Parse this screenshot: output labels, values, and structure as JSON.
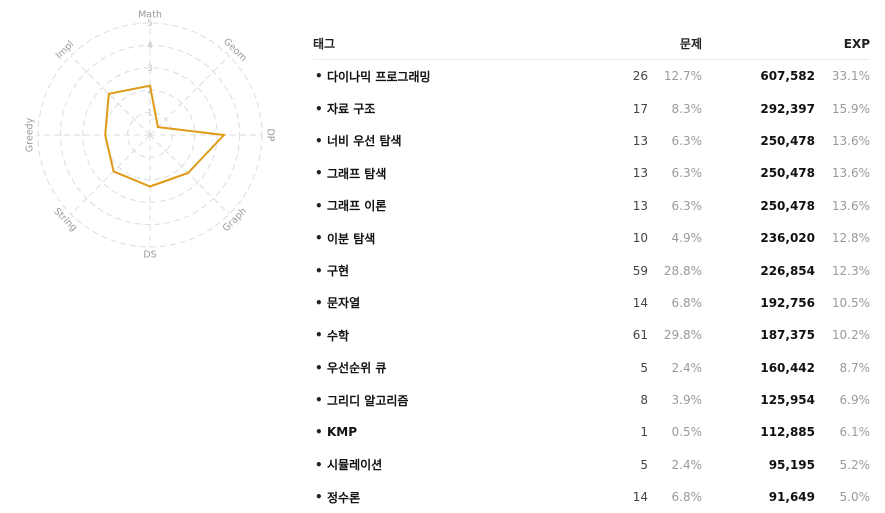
{
  "radar": {
    "axes": [
      {
        "label": "Math",
        "value": 2.2
      },
      {
        "label": "Geom",
        "value": 0.5
      },
      {
        "label": "DP",
        "value": 3.3
      },
      {
        "label": "Graph",
        "value": 2.4
      },
      {
        "label": "DS",
        "value": 2.3
      },
      {
        "label": "String",
        "value": 2.3
      },
      {
        "label": "Greedy",
        "value": 2.0
      },
      {
        "label": "Impl",
        "value": 2.6
      }
    ],
    "rings": [
      "1",
      "2",
      "3",
      "4",
      "5"
    ],
    "max": 5,
    "line_color": "#e09a16",
    "grid_color": "#dcdcdc"
  },
  "table": {
    "headers": {
      "tag": "태그",
      "problems": "문제",
      "exp": "EXP"
    },
    "rows": [
      {
        "tag": "다이나믹 프로그래밍",
        "count": "26",
        "count_pct": "12.7%",
        "exp": "607,582",
        "exp_pct": "33.1%"
      },
      {
        "tag": "자료 구조",
        "count": "17",
        "count_pct": "8.3%",
        "exp": "292,397",
        "exp_pct": "15.9%"
      },
      {
        "tag": "너비 우선 탐색",
        "count": "13",
        "count_pct": "6.3%",
        "exp": "250,478",
        "exp_pct": "13.6%"
      },
      {
        "tag": "그래프 탐색",
        "count": "13",
        "count_pct": "6.3%",
        "exp": "250,478",
        "exp_pct": "13.6%"
      },
      {
        "tag": "그래프 이론",
        "count": "13",
        "count_pct": "6.3%",
        "exp": "250,478",
        "exp_pct": "13.6%"
      },
      {
        "tag": "이분 탐색",
        "count": "10",
        "count_pct": "4.9%",
        "exp": "236,020",
        "exp_pct": "12.8%"
      },
      {
        "tag": "구현",
        "count": "59",
        "count_pct": "28.8%",
        "exp": "226,854",
        "exp_pct": "12.3%"
      },
      {
        "tag": "문자열",
        "count": "14",
        "count_pct": "6.8%",
        "exp": "192,756",
        "exp_pct": "10.5%"
      },
      {
        "tag": "수학",
        "count": "61",
        "count_pct": "29.8%",
        "exp": "187,375",
        "exp_pct": "10.2%"
      },
      {
        "tag": "우선순위 큐",
        "count": "5",
        "count_pct": "2.4%",
        "exp": "160,442",
        "exp_pct": "8.7%"
      },
      {
        "tag": "그리디 알고리즘",
        "count": "8",
        "count_pct": "3.9%",
        "exp": "125,954",
        "exp_pct": "6.9%"
      },
      {
        "tag": "KMP",
        "count": "1",
        "count_pct": "0.5%",
        "exp": "112,885",
        "exp_pct": "6.1%"
      },
      {
        "tag": "시뮬레이션",
        "count": "5",
        "count_pct": "2.4%",
        "exp": "95,195",
        "exp_pct": "5.2%"
      },
      {
        "tag": "정수론",
        "count": "14",
        "count_pct": "6.8%",
        "exp": "91,649",
        "exp_pct": "5.0%"
      }
    ]
  }
}
